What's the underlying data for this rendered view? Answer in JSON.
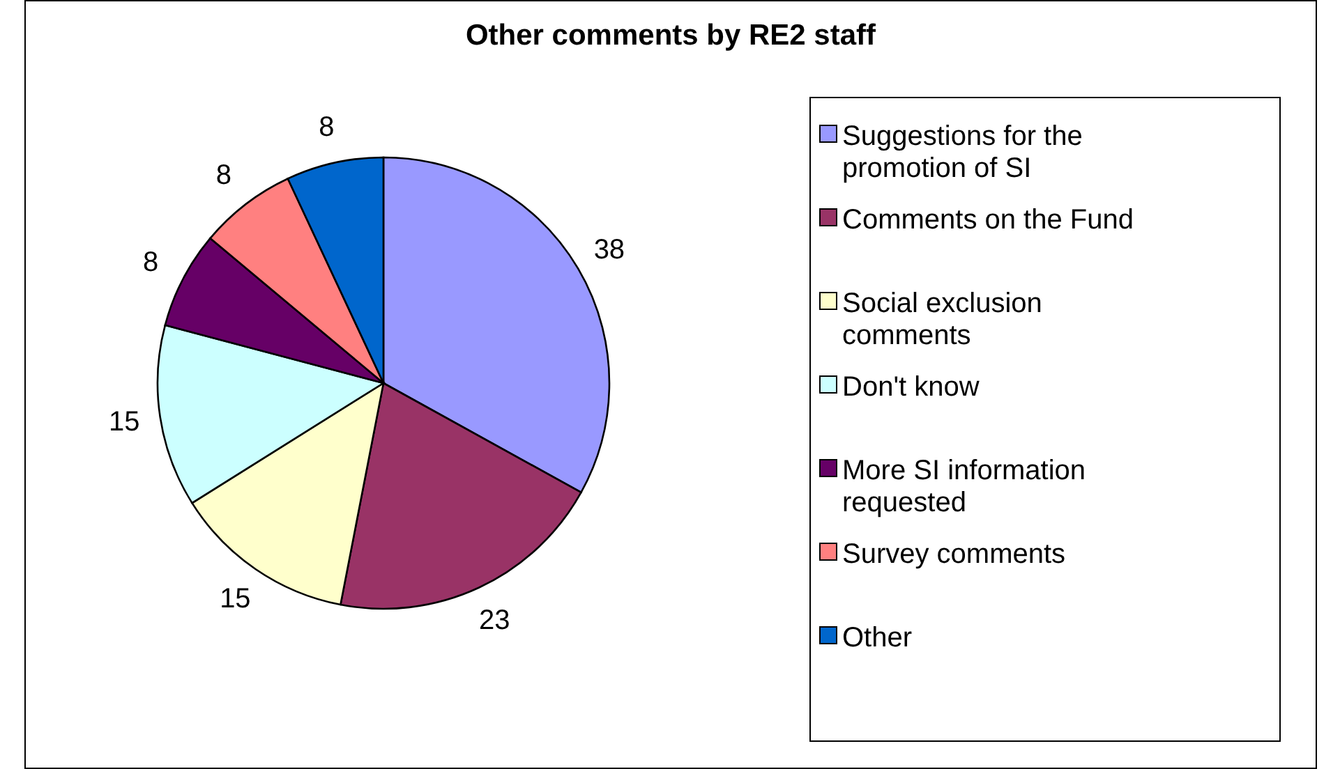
{
  "chart_data": {
    "type": "pie",
    "title": "Other comments by RE2 staff",
    "categories": [
      "Suggestions for the promotion of SI",
      "Comments on the Fund",
      "Social exclusion comments",
      "Don't know",
      "More SI information requested",
      "Survey comments",
      "Other"
    ],
    "values": [
      38,
      23,
      15,
      15,
      8,
      8,
      8
    ],
    "colors": [
      "#9999ff",
      "#993366",
      "#ffffcc",
      "#ccffff",
      "#660066",
      "#ff8080",
      "#0066cc"
    ],
    "data_labels": true,
    "legend": "right"
  }
}
